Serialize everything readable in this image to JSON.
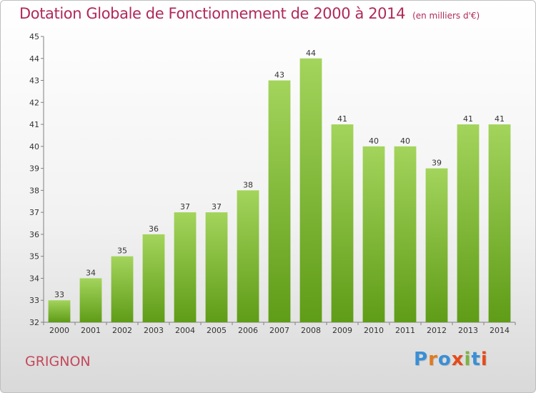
{
  "title": "Dotation Globale de Fonctionnement de 2000 à 2014",
  "subtitle": "(en milliers d'€)",
  "commune": "GRIGNON",
  "logo_text": "Proxiti",
  "colors": {
    "title": "#b0295a",
    "commune": "#c4485a",
    "bar_top": "#a3d45c",
    "bar_bottom": "#5f9c17",
    "logo": [
      "#3a8fd6",
      "#e07b1f",
      "#3a8fd6",
      "#e64a19",
      "#7cb342",
      "#3a8fd6",
      "#e64a19"
    ]
  },
  "chart_data": {
    "type": "bar",
    "categories": [
      "2000",
      "2001",
      "2002",
      "2003",
      "2004",
      "2005",
      "2006",
      "2007",
      "2008",
      "2009",
      "2010",
      "2011",
      "2012",
      "2013",
      "2014"
    ],
    "values": [
      33,
      34,
      35,
      36,
      37,
      37,
      38,
      43,
      44,
      41,
      40,
      40,
      39,
      41,
      41
    ],
    "data_labels": [
      "33",
      "34",
      "35",
      "36",
      "37",
      "37",
      "38",
      "43",
      "44",
      "41",
      "40",
      "40",
      "39",
      "41",
      "41"
    ],
    "yticks": [
      32,
      33,
      34,
      35,
      36,
      37,
      38,
      39,
      40,
      41,
      42,
      43,
      44,
      45
    ],
    "ylim": [
      32,
      45
    ],
    "grid": false,
    "xlabel": "",
    "ylabel": ""
  }
}
